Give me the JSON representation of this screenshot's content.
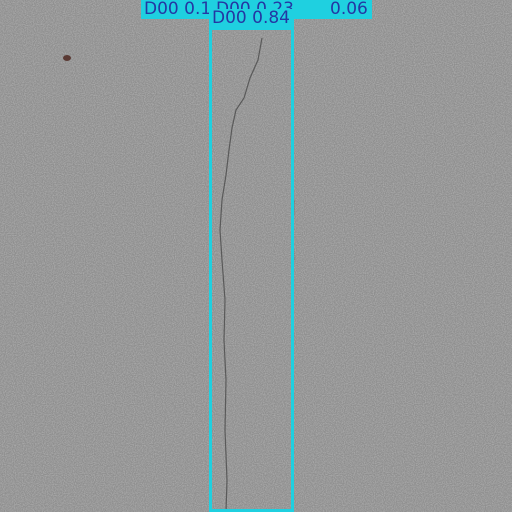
{
  "detections": [
    {
      "class": "D00",
      "score": "0.1"
    },
    {
      "class": "D00",
      "score": "0.23"
    },
    {
      "class": "D00",
      "score": "0.06"
    },
    {
      "class": "D00",
      "score": "0.84"
    }
  ],
  "labels": {
    "back_left": "D00  0.1",
    "back_middle": "D00  0.23",
    "back_right": "0.06",
    "front": "D00  0.84"
  },
  "colors": {
    "box": "#1fd0e0",
    "label_text": "#2437a3",
    "asphalt": "#8e8e8e"
  }
}
